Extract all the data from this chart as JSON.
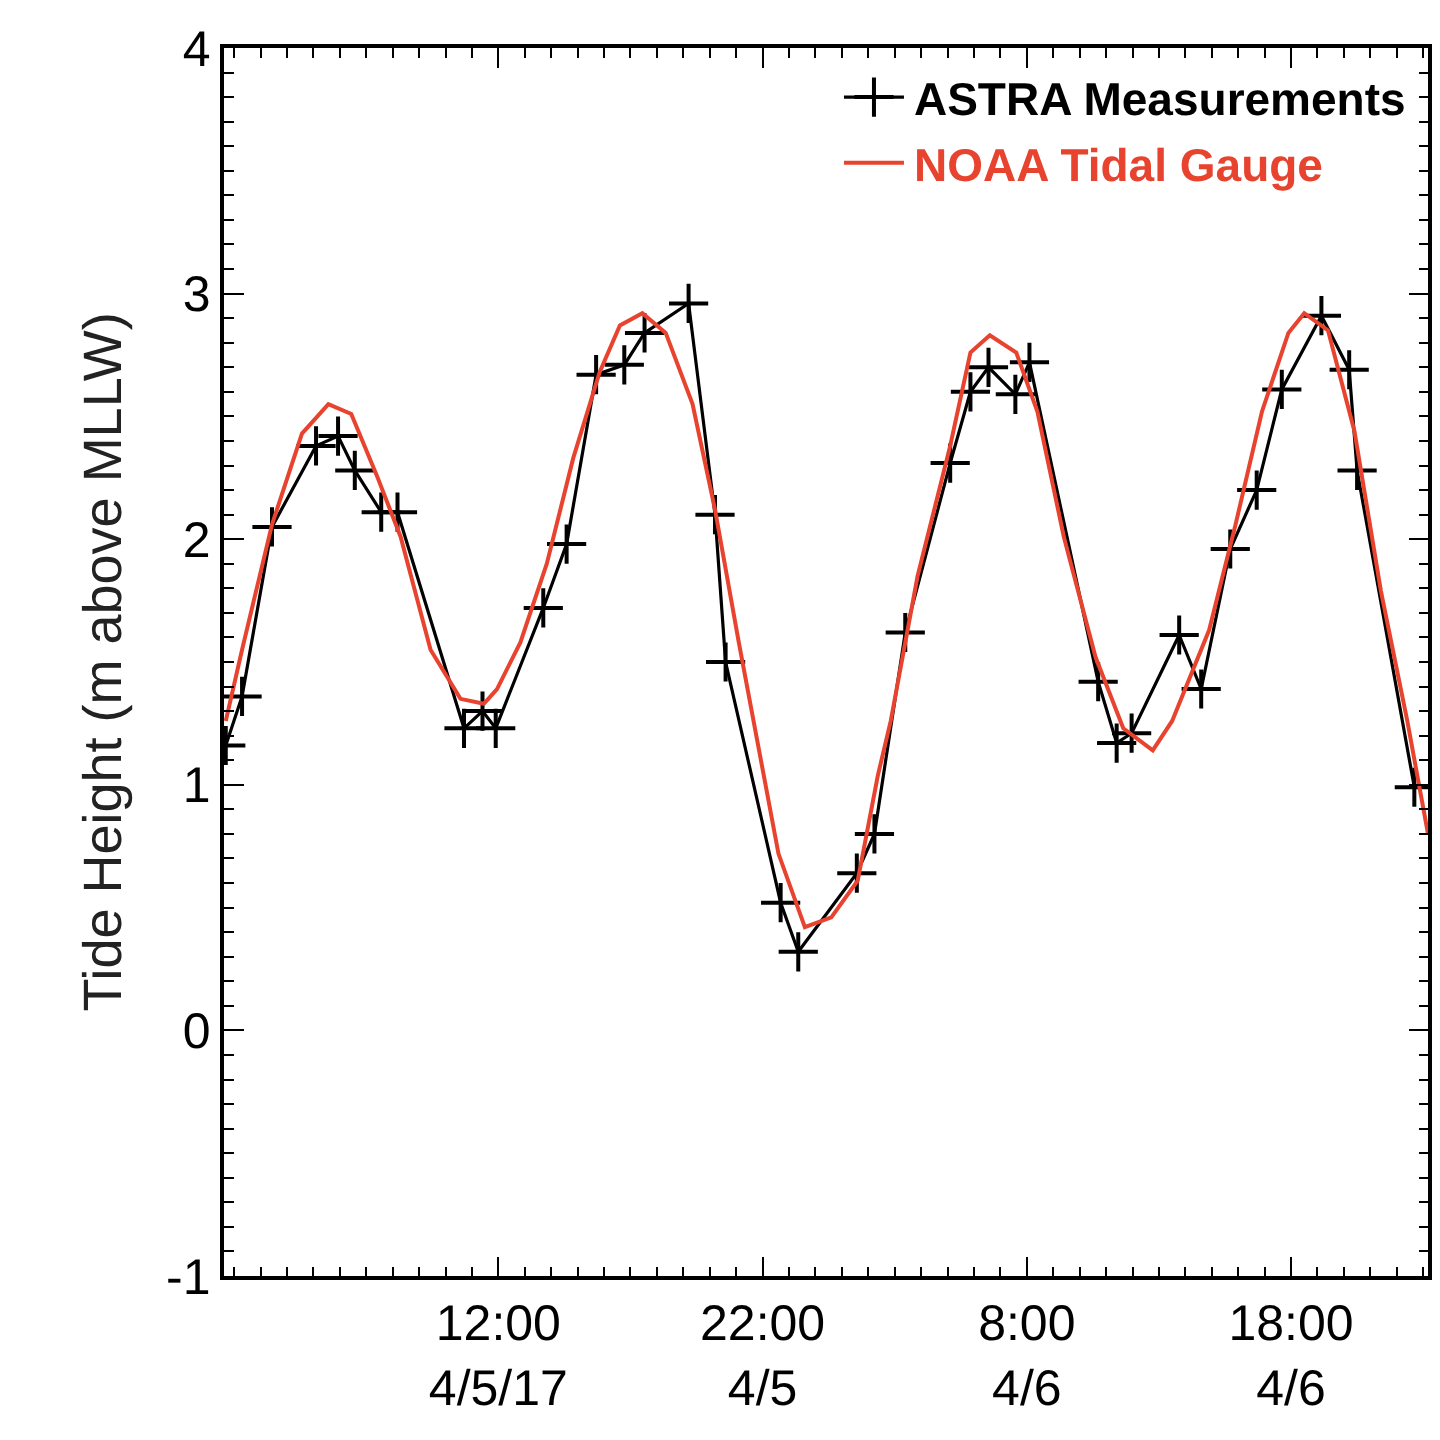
{
  "chart_data": {
    "type": "line",
    "ylabel": "Tide Height (m above MLLW)",
    "xlim": [
      "--04-05T01:37",
      "--04-06T23:11"
    ],
    "xticks": [
      {
        "value": "--04-05T02:00",
        "label": null
      },
      {
        "value": "--04-05T03:00",
        "label": null
      },
      {
        "value": "--04-05T04:00",
        "label": null
      },
      {
        "value": "--04-05T05:00",
        "label": null
      },
      {
        "value": "--04-05T06:00",
        "label": null
      },
      {
        "value": "--04-05T07:00",
        "label": null
      },
      {
        "value": "--04-05T08:00",
        "label": null
      },
      {
        "value": "--04-05T09:00",
        "label": null
      },
      {
        "value": "--04-05T10:00",
        "label": null
      },
      {
        "value": "--04-05T11:00",
        "label": null
      },
      {
        "value": "--04-05T12:00",
        "label": "12:00\n4/5/17"
      },
      {
        "value": "--04-05T13:00",
        "label": null
      },
      {
        "value": "--04-05T14:00",
        "label": null
      },
      {
        "value": "--04-05T15:00",
        "label": null
      },
      {
        "value": "--04-05T16:00",
        "label": null
      },
      {
        "value": "--04-05T17:00",
        "label": null
      },
      {
        "value": "--04-05T18:00",
        "label": null
      },
      {
        "value": "--04-05T19:00",
        "label": null
      },
      {
        "value": "--04-05T20:00",
        "label": null
      },
      {
        "value": "--04-05T21:00",
        "label": null
      },
      {
        "value": "--04-05T22:00",
        "label": "22:00\n4/5"
      },
      {
        "value": "--04-05T23:00",
        "label": null
      },
      {
        "value": "--04-06T00:00",
        "label": null
      },
      {
        "value": "--04-06T01:00",
        "label": null
      },
      {
        "value": "--04-06T02:00",
        "label": null
      },
      {
        "value": "--04-06T03:00",
        "label": null
      },
      {
        "value": "--04-06T04:00",
        "label": null
      },
      {
        "value": "--04-06T05:00",
        "label": null
      },
      {
        "value": "--04-06T06:00",
        "label": null
      },
      {
        "value": "--04-06T07:00",
        "label": null
      },
      {
        "value": "--04-06T08:00",
        "label": "8:00\n4/6"
      },
      {
        "value": "--04-06T09:00",
        "label": null
      },
      {
        "value": "--04-06T10:00",
        "label": null
      },
      {
        "value": "--04-06T11:00",
        "label": null
      },
      {
        "value": "--04-06T12:00",
        "label": null
      },
      {
        "value": "--04-06T13:00",
        "label": null
      },
      {
        "value": "--04-06T14:00",
        "label": null
      },
      {
        "value": "--04-06T15:00",
        "label": null
      },
      {
        "value": "--04-06T16:00",
        "label": null
      },
      {
        "value": "--04-06T17:00",
        "label": null
      },
      {
        "value": "--04-06T18:00",
        "label": "18:00\n4/6"
      },
      {
        "value": "--04-06T19:00",
        "label": null
      },
      {
        "value": "--04-06T20:00",
        "label": null
      },
      {
        "value": "--04-06T21:00",
        "label": null
      },
      {
        "value": "--04-06T22:00",
        "label": null
      },
      {
        "value": "--04-06T23:00",
        "label": null
      }
    ],
    "ylim": [
      -1,
      4
    ],
    "yticks": [
      -1,
      {
        "value": -0.9,
        "label": null
      },
      {
        "value": -0.8,
        "label": null
      },
      {
        "value": -0.7,
        "label": null
      },
      {
        "value": -0.6,
        "label": null
      },
      {
        "value": -0.5,
        "label": null
      },
      {
        "value": -0.4,
        "label": null
      },
      {
        "value": -0.3,
        "label": null
      },
      {
        "value": -0.2,
        "label": null
      },
      {
        "value": -0.1,
        "label": null
      },
      0,
      {
        "value": 0.1,
        "label": null
      },
      {
        "value": 0.2,
        "label": null
      },
      {
        "value": 0.3,
        "label": null
      },
      {
        "value": 0.4,
        "label": null
      },
      {
        "value": 0.5,
        "label": null
      },
      {
        "value": 0.6,
        "label": null
      },
      {
        "value": 0.7,
        "label": null
      },
      {
        "value": 0.8,
        "label": null
      },
      {
        "value": 0.9,
        "label": null
      },
      1,
      {
        "value": 1.1,
        "label": null
      },
      {
        "value": 1.2,
        "label": null
      },
      {
        "value": 1.3,
        "label": null
      },
      {
        "value": 1.4,
        "label": null
      },
      {
        "value": 1.5,
        "label": null
      },
      {
        "value": 1.6,
        "label": null
      },
      {
        "value": 1.7,
        "label": null
      },
      {
        "value": 1.8,
        "label": null
      },
      {
        "value": 1.9,
        "label": null
      },
      2,
      {
        "value": 2.1,
        "label": null
      },
      {
        "value": 2.2,
        "label": null
      },
      {
        "value": 2.3,
        "label": null
      },
      {
        "value": 2.4,
        "label": null
      },
      {
        "value": 2.5,
        "label": null
      },
      {
        "value": 2.6,
        "label": null
      },
      {
        "value": 2.7,
        "label": null
      },
      {
        "value": 2.8,
        "label": null
      },
      {
        "value": 2.9,
        "label": null
      },
      3,
      {
        "value": 3.1,
        "label": null
      },
      {
        "value": 3.2,
        "label": null
      },
      {
        "value": 3.3,
        "label": null
      },
      {
        "value": 3.4,
        "label": null
      },
      {
        "value": 3.5,
        "label": null
      },
      {
        "value": 3.6,
        "label": null
      },
      {
        "value": 3.7,
        "label": null
      },
      {
        "value": 3.8,
        "label": null
      },
      {
        "value": 3.9,
        "label": null
      },
      4
    ],
    "legend": "top right",
    "line_style": "solid",
    "series": [
      {
        "name": "ASTRA Measurements",
        "color": "#000000",
        "marker": "cross",
        "x": [
          "--04-05T01:41",
          "--04-05T02:18",
          "--04-05T03:26",
          "--04-05T05:06",
          "--04-05T05:56",
          "--04-05T06:34",
          "--04-05T07:34",
          "--04-05T08:11",
          "--04-05T10:42",
          "--04-05T11:24",
          "--04-05T11:54",
          "--04-05T13:42",
          "--04-05T14:35",
          "--04-05T15:42",
          "--04-05T16:46",
          "--04-05T17:32",
          "--04-05T19:12",
          "--04-05T20:12",
          "--04-05T20:36",
          "--04-05T22:41",
          "--04-05T23:21",
          "--04-06T01:34",
          "--04-06T02:14",
          "--04-06T03:24",
          "--04-06T05:06",
          "--04-06T05:52",
          "--04-06T06:33",
          "--04-06T07:34",
          "--04-06T08:06",
          "--04-06T10:42",
          "--04-06T11:24",
          "--04-06T11:58",
          "--04-06T13:46",
          "--04-06T14:36",
          "--04-06T15:42",
          "--04-06T16:42",
          "--04-06T17:39",
          "--04-06T19:09",
          "--04-06T20:12",
          "--04-06T20:30",
          "--04-06T22:40"
        ],
        "values": [
          1.16,
          1.36,
          2.05,
          2.38,
          2.42,
          2.28,
          2.11,
          2.11,
          1.23,
          1.3,
          1.23,
          1.72,
          1.98,
          2.67,
          2.71,
          2.84,
          2.96,
          2.1,
          1.5,
          0.52,
          0.32,
          0.64,
          0.8,
          1.62,
          2.31,
          2.6,
          2.7,
          2.59,
          2.72,
          1.42,
          1.17,
          1.21,
          1.61,
          1.39,
          1.96,
          2.2,
          2.61,
          2.91,
          2.69,
          2.28,
          0.99
        ]
      },
      {
        "name": "NOAA Tidal Gauge",
        "color": "#e8432e",
        "marker": "none",
        "x": [
          "--04-05T01:41",
          "--04-05T02:18",
          "--04-05T03:26",
          "--04-05T04:34",
          "--04-05T05:34",
          "--04-05T06:26",
          "--04-05T07:26",
          "--04-05T08:18",
          "--04-05T09:26",
          "--04-05T10:34",
          "--04-05T11:27",
          "--04-05T11:57",
          "--04-05T12:50",
          "--04-05T13:50",
          "--04-05T14:50",
          "--04-05T15:50",
          "--04-05T16:36",
          "--04-05T17:27",
          "--04-05T18:20",
          "--04-05T19:21",
          "--04-05T20:12",
          "--04-05T21:06",
          "--04-05T22:36",
          "--04-05T23:36",
          "--04-06T00:36",
          "--04-06T01:36",
          "--04-06T02:22",
          "--04-06T02:51",
          "--04-06T03:52",
          "--04-06T05:06",
          "--04-06T05:52",
          "--04-06T06:36",
          "--04-06T07:36",
          "--04-06T08:24",
          "--04-06T09:24",
          "--04-06T10:36",
          "--04-06T11:39",
          "--04-06T12:46",
          "--04-06T13:30",
          "--04-06T14:54",
          "--04-06T15:54",
          "--04-06T16:54",
          "--04-06T17:54",
          "--04-06T18:30",
          "--04-06T19:24",
          "--04-06T20:24",
          "--04-06T21:24",
          "--04-06T22:24",
          "--04-06T23:11"
        ],
        "values": [
          1.26,
          1.55,
          2.06,
          2.43,
          2.55,
          2.51,
          2.25,
          2.01,
          1.55,
          1.35,
          1.33,
          1.39,
          1.58,
          1.9,
          2.33,
          2.68,
          2.87,
          2.92,
          2.84,
          2.55,
          2.12,
          1.58,
          0.72,
          0.42,
          0.46,
          0.61,
          1.04,
          1.26,
          1.85,
          2.38,
          2.76,
          2.83,
          2.76,
          2.52,
          2.01,
          1.52,
          1.23,
          1.14,
          1.26,
          1.63,
          2.06,
          2.52,
          2.84,
          2.92,
          2.85,
          2.44,
          1.79,
          1.26,
          0.8
        ]
      }
    ]
  }
}
